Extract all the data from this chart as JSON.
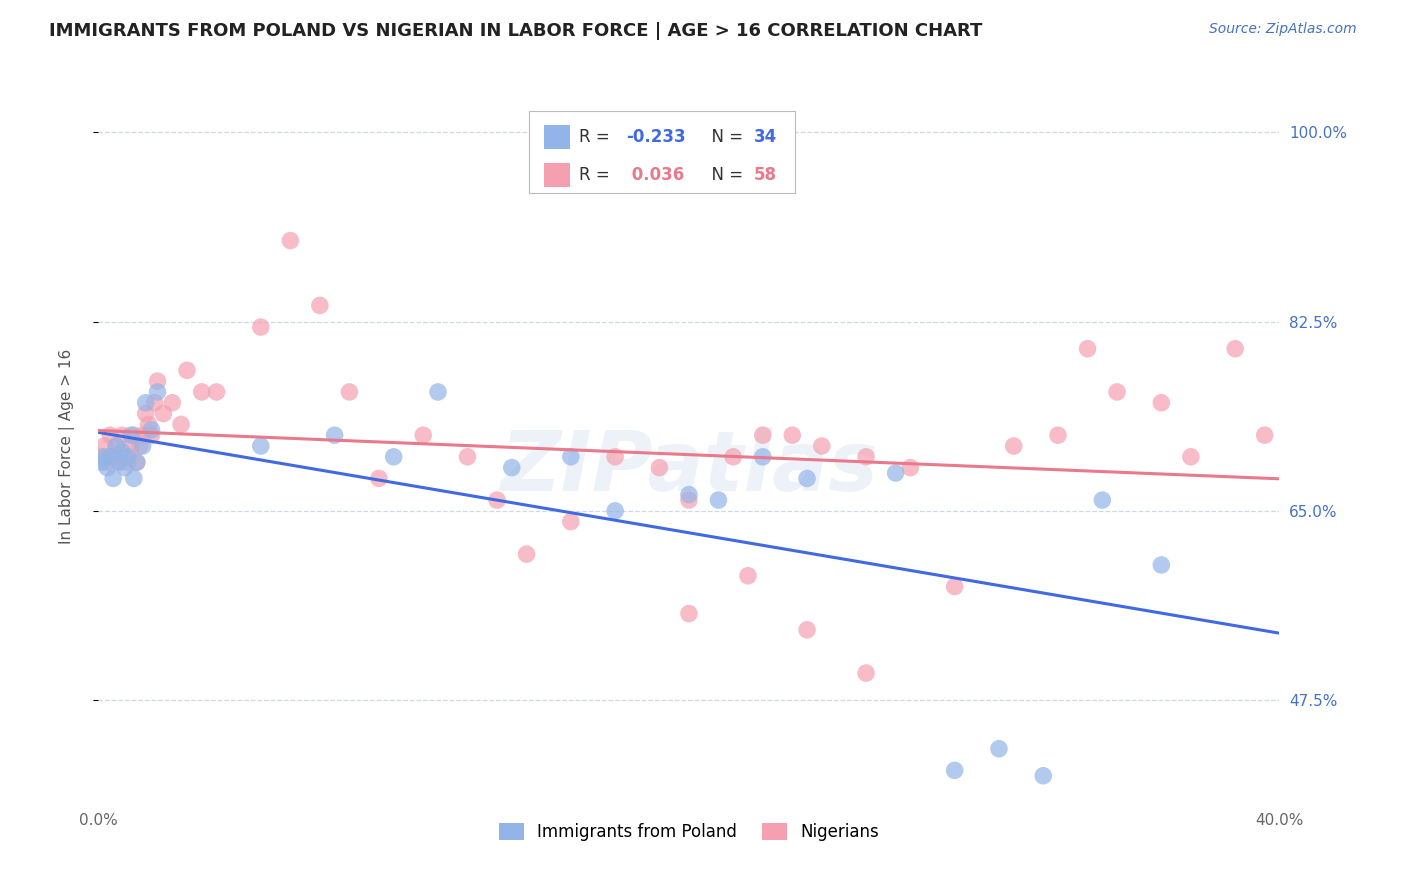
{
  "title": "IMMIGRANTS FROM POLAND VS NIGERIAN IN LABOR FORCE | AGE > 16 CORRELATION CHART",
  "source": "Source: ZipAtlas.com",
  "ylabel": "In Labor Force | Age > 16",
  "x_min": 0.0,
  "x_max": 0.4,
  "y_min": 0.38,
  "y_max": 1.04,
  "x_ticks": [
    0.0,
    0.05,
    0.1,
    0.15,
    0.2,
    0.25,
    0.3,
    0.35,
    0.4
  ],
  "y_ticks": [
    0.475,
    0.65,
    0.825,
    1.0
  ],
  "y_tick_labels": [
    "47.5%",
    "65.0%",
    "82.5%",
    "100.0%"
  ],
  "poland_color": "#92b4e8",
  "nigeria_color": "#f4a0b0",
  "poland_line_color": "#4169e1",
  "nigeria_line_color": "#e87a8c",
  "background_color": "#ffffff",
  "grid_color": "#c8d4e8",
  "watermark": "ZIPatlas",
  "poland_R": -0.233,
  "poland_N": 34,
  "nigeria_R": 0.036,
  "nigeria_N": 58,
  "poland_x": [
    0.001,
    0.002,
    0.003,
    0.004,
    0.005,
    0.006,
    0.007,
    0.008,
    0.009,
    0.01,
    0.011,
    0.012,
    0.013,
    0.015,
    0.016,
    0.018,
    0.02,
    0.055,
    0.08,
    0.1,
    0.115,
    0.14,
    0.16,
    0.175,
    0.2,
    0.21,
    0.225,
    0.24,
    0.27,
    0.29,
    0.305,
    0.32,
    0.34,
    0.36
  ],
  "poland_y": [
    0.695,
    0.7,
    0.69,
    0.7,
    0.68,
    0.71,
    0.695,
    0.705,
    0.69,
    0.7,
    0.72,
    0.68,
    0.695,
    0.71,
    0.75,
    0.725,
    0.76,
    0.71,
    0.72,
    0.7,
    0.76,
    0.69,
    0.7,
    0.65,
    0.665,
    0.66,
    0.7,
    0.68,
    0.685,
    0.41,
    0.43,
    0.405,
    0.66,
    0.6
  ],
  "nigeria_x": [
    0.001,
    0.002,
    0.003,
    0.004,
    0.005,
    0.006,
    0.007,
    0.008,
    0.009,
    0.01,
    0.011,
    0.012,
    0.013,
    0.014,
    0.015,
    0.016,
    0.017,
    0.018,
    0.019,
    0.02,
    0.022,
    0.025,
    0.028,
    0.03,
    0.035,
    0.04,
    0.055,
    0.065,
    0.075,
    0.085,
    0.095,
    0.11,
    0.125,
    0.135,
    0.145,
    0.16,
    0.175,
    0.19,
    0.2,
    0.215,
    0.225,
    0.235,
    0.245,
    0.26,
    0.275,
    0.29,
    0.31,
    0.325,
    0.335,
    0.345,
    0.36,
    0.37,
    0.385,
    0.395,
    0.2,
    0.22,
    0.24,
    0.26
  ],
  "nigeria_y": [
    0.7,
    0.71,
    0.695,
    0.72,
    0.7,
    0.71,
    0.695,
    0.72,
    0.7,
    0.695,
    0.71,
    0.72,
    0.695,
    0.71,
    0.72,
    0.74,
    0.73,
    0.72,
    0.75,
    0.77,
    0.74,
    0.75,
    0.73,
    0.78,
    0.76,
    0.76,
    0.82,
    0.9,
    0.84,
    0.76,
    0.68,
    0.72,
    0.7,
    0.66,
    0.61,
    0.64,
    0.7,
    0.69,
    0.66,
    0.7,
    0.72,
    0.72,
    0.71,
    0.7,
    0.69,
    0.58,
    0.71,
    0.72,
    0.8,
    0.76,
    0.75,
    0.7,
    0.8,
    0.72,
    0.555,
    0.59,
    0.54,
    0.5
  ]
}
